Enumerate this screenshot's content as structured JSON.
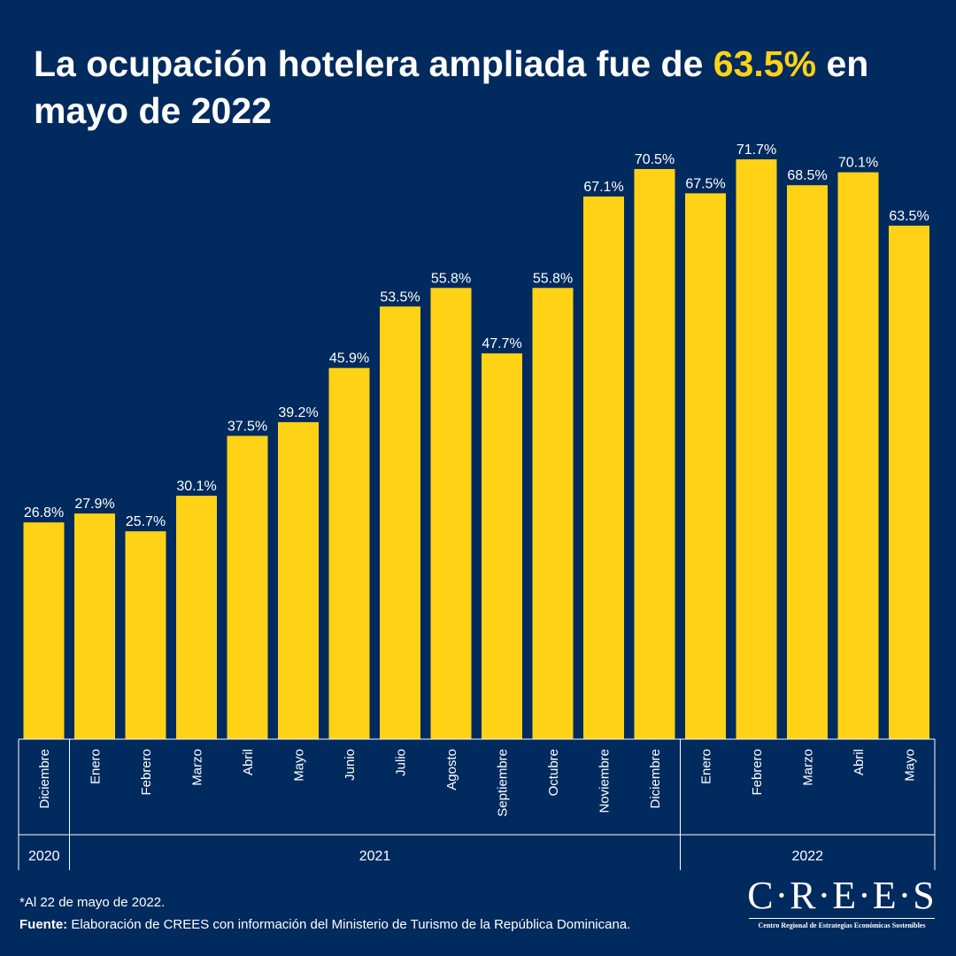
{
  "title": {
    "part1": "La ocupación hotelera ampliada fue de ",
    "highlight": "63.5%",
    "part2": " en mayo de 2022"
  },
  "colors": {
    "background": "#012a5e",
    "bar": "#ffd215",
    "text": "#ffffff",
    "highlight": "#ffd215"
  },
  "chart_data": {
    "type": "bar",
    "title": "La ocupación hotelera ampliada fue de 63.5% en mayo de 2022",
    "xlabel": "",
    "ylabel": "",
    "categories": [
      "Diciembre",
      "Enero",
      "Febrero",
      "Marzo",
      "Abril",
      "Mayo",
      "Junio",
      "Julio",
      "Agosto",
      "Septiembre",
      "Octubre",
      "Noviembre",
      "Diciembre",
      "Enero",
      "Febrero",
      "Marzo",
      "Abril",
      "Mayo"
    ],
    "values": [
      26.8,
      27.9,
      25.7,
      30.1,
      37.5,
      39.2,
      45.9,
      53.5,
      55.8,
      47.7,
      55.8,
      67.1,
      70.5,
      67.5,
      71.7,
      68.5,
      70.1,
      63.5
    ],
    "value_labels": [
      "26.8%",
      "27.9%",
      "25.7%",
      "30.1%",
      "37.5%",
      "39.2%",
      "45.9%",
      "53.5%",
      "55.8%",
      "47.7%",
      "55.8%",
      "67.1%",
      "70.5%",
      "67.5%",
      "71.7%",
      "68.5%",
      "70.1%",
      "63.5%"
    ],
    "year_groups": [
      {
        "label": "2020",
        "count": 1
      },
      {
        "label": "2021",
        "count": 12
      },
      {
        "label": "2022",
        "count": 5
      }
    ],
    "ylim": [
      0,
      71.7
    ],
    "grid": false,
    "legend": "none"
  },
  "footnote": "*Al 22 de mayo de 2022.",
  "source": {
    "label": "Fuente:",
    "text": " Elaboración de CREES con información del Ministerio de Turismo de la República Dominicana."
  },
  "logo": {
    "wordmark": "C·R·E·E·S",
    "subtitle": "Centro Regional de Estrategias Económicas Sostenibles"
  }
}
